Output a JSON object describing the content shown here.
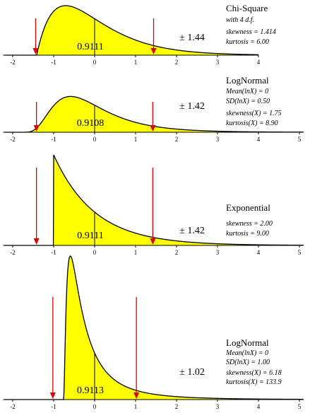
{
  "colors": {
    "fill": "#ffff00",
    "outline": "#000000",
    "arrow": "#dd0000",
    "axis": "#000000"
  },
  "chart_data": [
    {
      "type": "area",
      "distribution": "chi-square",
      "x_range": [
        -2.2,
        4.0
      ],
      "x_ticks": [
        "-2",
        "-1",
        "0",
        "1",
        "2",
        "3",
        "4"
      ],
      "title": "Chi-Square",
      "notes": [
        "with 4 d.f.",
        "skewness = 1.414",
        "kurtosis = 6.00"
      ],
      "center_probability": "0.9111",
      "interval_label": "± 1.44",
      "interval": [
        -1.44,
        1.44
      ],
      "mode": -0.71,
      "peak_height_fraction": 1.0
    },
    {
      "type": "area",
      "distribution": "lognormal",
      "x_range": [
        -2.2,
        5.1
      ],
      "x_ticks": [
        "-2",
        "-1",
        "0",
        "1",
        "2",
        "3",
        "4",
        "5"
      ],
      "title": "LogNormal",
      "notes": [
        "Mean(lnX) = 0",
        "SD(lnX) = 0.50",
        "skewness(X) = 1.75",
        "kurtosis(X) = 8.90"
      ],
      "center_probability": "0.9108",
      "interval_label": "± 1.42",
      "interval": [
        -1.42,
        1.42
      ],
      "lognormal_sigma": 0.5,
      "peak_height_fraction": 0.83
    },
    {
      "type": "area",
      "distribution": "exponential",
      "x_range": [
        -2.2,
        5.1
      ],
      "x_ticks": [
        "-2",
        "-1",
        "0",
        "1",
        "2",
        "3",
        "4",
        "5"
      ],
      "title": "Exponential",
      "notes": [
        "skewness = 2.00",
        "kurtosis = 9.00"
      ],
      "center_probability": "0.9111",
      "interval_label": "± 1.42",
      "interval": [
        -1.42,
        1.42
      ],
      "peak_height_fraction": 1.0
    },
    {
      "type": "area",
      "distribution": "lognormal",
      "x_range": [
        -2.2,
        5.1
      ],
      "x_ticks": [
        "-2",
        "-1",
        "0",
        "1",
        "2",
        "3",
        "4",
        "5"
      ],
      "title": "LogNormal",
      "notes": [
        "Mean(lnX) = 0",
        "SD(lnX) = 1.00",
        "skewness(X) = 6.18",
        "kurtosis(X) = 133.9"
      ],
      "center_probability": "0.9113",
      "interval_label": "± 1.02",
      "interval": [
        -1.02,
        1.02
      ],
      "lognormal_sigma": 1.0,
      "peak_height_fraction": 1.0
    }
  ]
}
